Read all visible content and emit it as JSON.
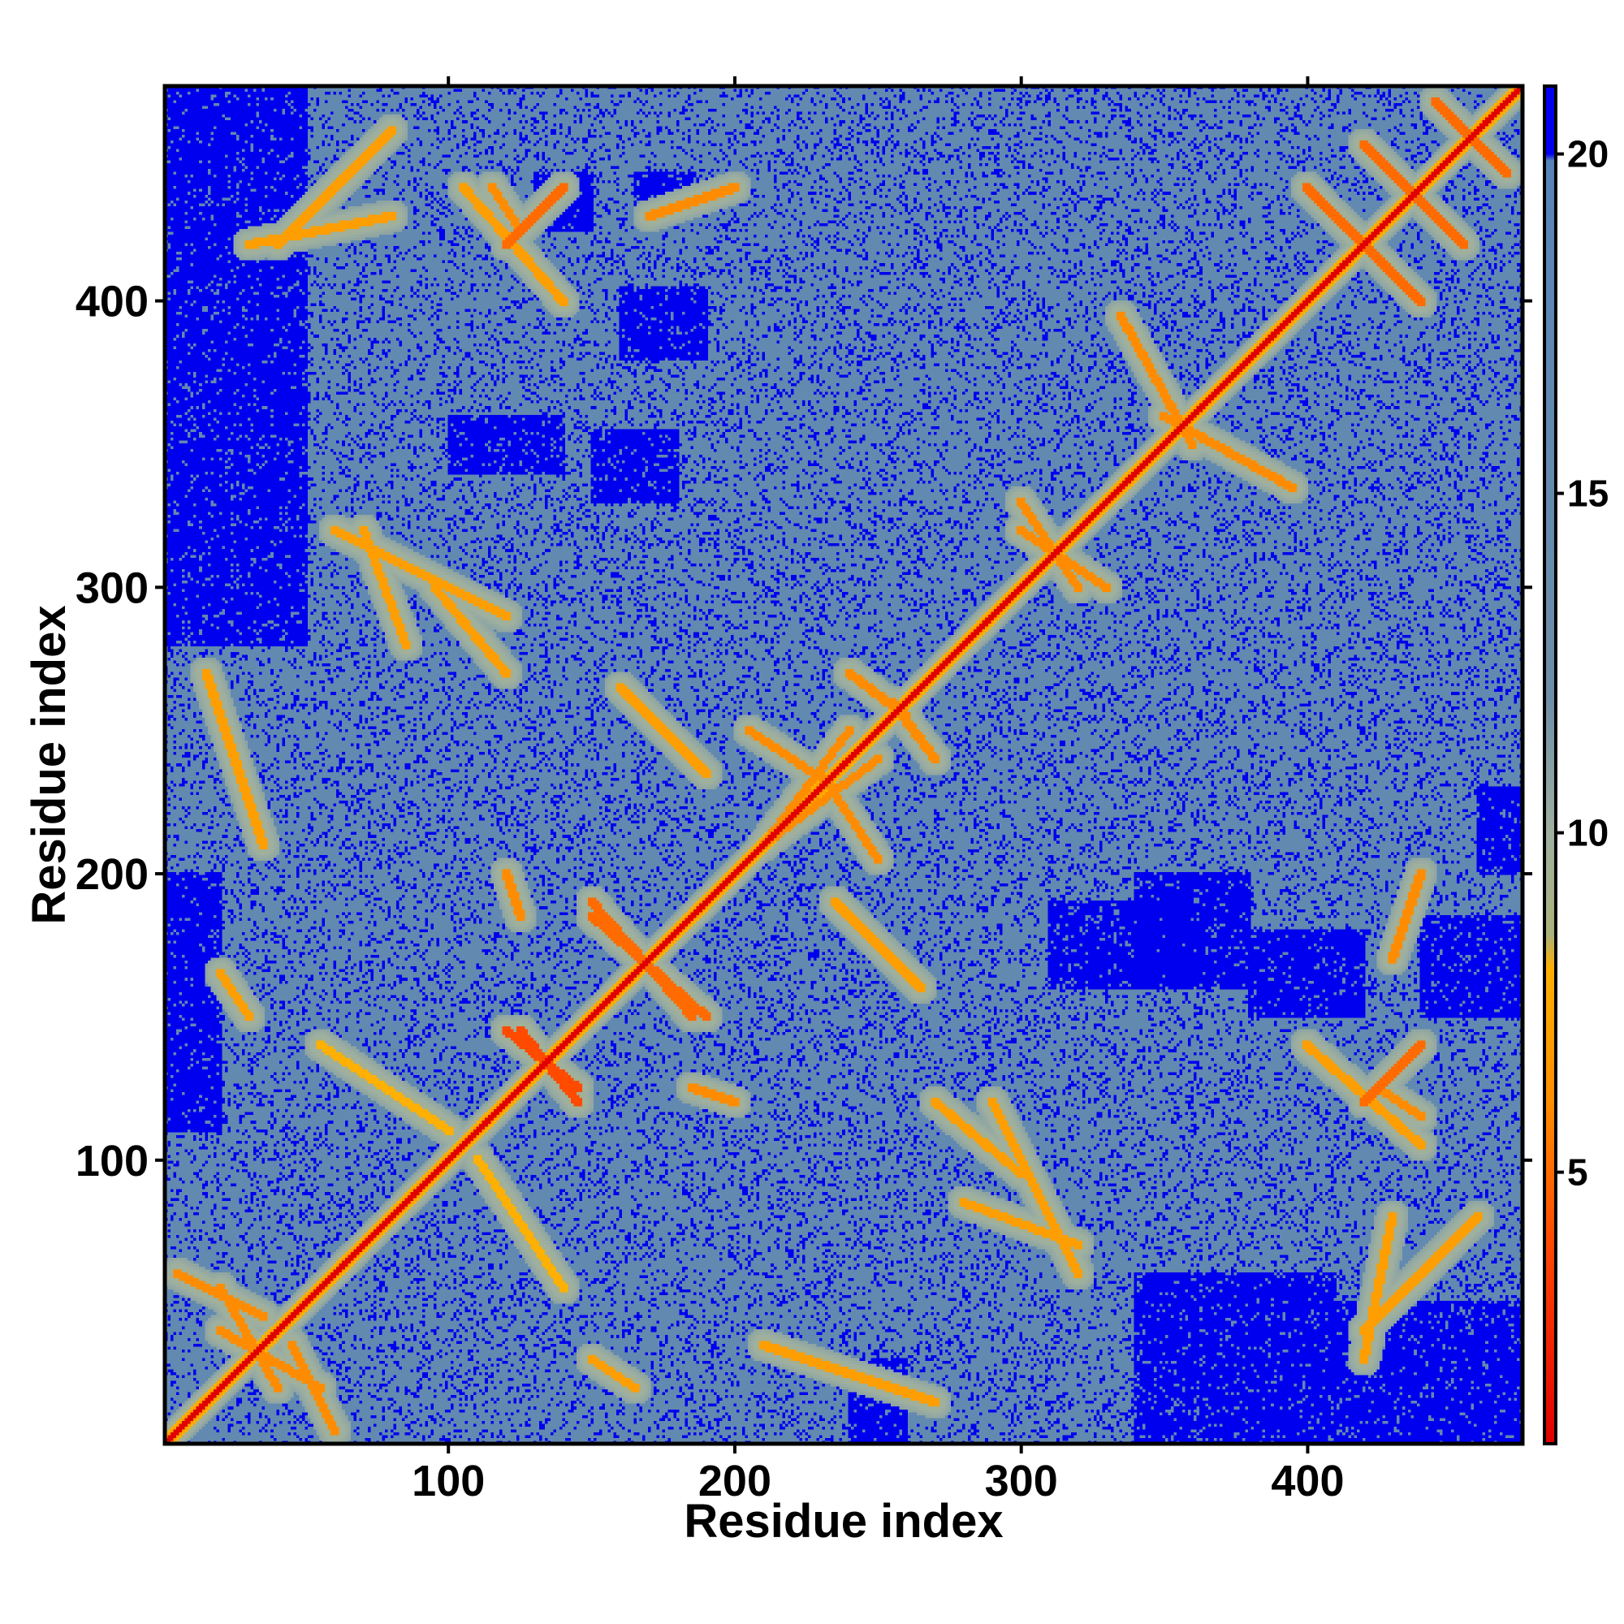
{
  "chart_data": {
    "type": "heatmap",
    "title": "",
    "xlabel": "Residue index",
    "ylabel": "Residue index",
    "xlim": [
      1,
      475
    ],
    "ylim": [
      1,
      475
    ],
    "x_ticks": [
      100,
      200,
      300,
      400
    ],
    "y_ticks": [
      100,
      200,
      300,
      400
    ],
    "x_tick_labels": [
      "100",
      "200",
      "300",
      "400"
    ],
    "y_tick_labels": [
      "100",
      "200",
      "300",
      "400"
    ],
    "grid": false,
    "legend": "none",
    "colorbar": {
      "placement": "right",
      "range": [
        1,
        21
      ],
      "ticks": [
        5,
        10,
        15,
        20
      ],
      "tick_labels": [
        "5",
        "10",
        "15",
        "20"
      ],
      "stops": [
        {
          "value": 1,
          "color": "#e00000"
        },
        {
          "value": 4,
          "color": "#ff4a00"
        },
        {
          "value": 6,
          "color": "#ff8c00"
        },
        {
          "value": 8,
          "color": "#ffb000"
        },
        {
          "value": 8.5,
          "color": "#aab27a"
        },
        {
          "value": 10,
          "color": "#9fb0a0"
        },
        {
          "value": 12,
          "color": "#6d8ea8"
        },
        {
          "value": 19.9,
          "color": "#5784b8"
        },
        {
          "value": 20,
          "color": "#0000ee"
        },
        {
          "value": 21,
          "color": "#0000ee"
        }
      ]
    },
    "features": {
      "diagonal_value": 1,
      "background_value": 16,
      "far_value": 21,
      "contact_lines": [
        {
          "from": [
            40,
            20
          ],
          "to": [
            20,
            55
          ],
          "value": 6
        },
        {
          "from": [
            45,
            35
          ],
          "to": [
            60,
            5
          ],
          "value": 6
        },
        {
          "from": [
            125,
            145
          ],
          "to": [
            145,
            120
          ],
          "value": 4
        },
        {
          "from": [
            150,
            190
          ],
          "to": [
            185,
            150
          ],
          "value": 5
        },
        {
          "from": [
            210,
            210
          ],
          "to": [
            240,
            250
          ],
          "value": 6
        },
        {
          "from": [
            235,
            190
          ],
          "to": [
            265,
            160
          ],
          "value": 7
        },
        {
          "from": [
            230,
            235
          ],
          "to": [
            250,
            205
          ],
          "value": 6
        },
        {
          "from": [
            255,
            260
          ],
          "to": [
            270,
            240
          ],
          "value": 6
        },
        {
          "from": [
            300,
            320
          ],
          "to": [
            330,
            300
          ],
          "value": 6
        },
        {
          "from": [
            350,
            360
          ],
          "to": [
            395,
            335
          ],
          "value": 6
        },
        {
          "from": [
            410,
            430
          ],
          "to": [
            440,
            400
          ],
          "value": 5
        },
        {
          "from": [
            425,
            450
          ],
          "to": [
            455,
            420
          ],
          "value": 5
        },
        {
          "from": [
            445,
            470
          ],
          "to": [
            470,
            445
          ],
          "value": 5
        },
        {
          "from": [
            115,
            440
          ],
          "to": [
            125,
            425
          ],
          "value": 6
        },
        {
          "from": [
            105,
            440
          ],
          "to": [
            140,
            400
          ],
          "value": 7
        },
        {
          "from": [
            40,
            420
          ],
          "to": [
            80,
            460
          ],
          "value": 7
        },
        {
          "from": [
            60,
            320
          ],
          "to": [
            120,
            290
          ],
          "value": 7
        },
        {
          "from": [
            55,
            140
          ],
          "to": [
            100,
            110
          ],
          "value": 8
        },
        {
          "from": [
            270,
            120
          ],
          "to": [
            300,
            95
          ],
          "value": 7
        },
        {
          "from": [
            280,
            85
          ],
          "to": [
            320,
            70
          ],
          "value": 7
        },
        {
          "from": [
            420,
            30
          ],
          "to": [
            430,
            80
          ],
          "value": 7
        },
        {
          "from": [
            430,
            170
          ],
          "to": [
            440,
            200
          ],
          "value": 6
        },
        {
          "from": [
            420,
            120
          ],
          "to": [
            440,
            140
          ],
          "value": 5
        },
        {
          "from": [
            20,
            165
          ],
          "to": [
            30,
            150
          ],
          "value": 7
        },
        {
          "from": [
            120,
            200
          ],
          "to": [
            125,
            185
          ],
          "value": 6
        },
        {
          "from": [
            15,
            270
          ],
          "to": [
            35,
            210
          ],
          "value": 7
        }
      ],
      "far_regions": [
        {
          "x": [
            1,
            50
          ],
          "y": [
            280,
            475
          ]
        },
        {
          "x": [
            340,
            410
          ],
          "y": [
            1,
            60
          ]
        },
        {
          "x": [
            410,
            475
          ],
          "y": [
            1,
            50
          ]
        },
        {
          "x": [
            1,
            20
          ],
          "y": [
            110,
            200
          ]
        },
        {
          "x": [
            310,
            360
          ],
          "y": [
            160,
            190
          ]
        },
        {
          "x": [
            340,
            380
          ],
          "y": [
            160,
            200
          ]
        },
        {
          "x": [
            380,
            420
          ],
          "y": [
            150,
            180
          ]
        },
        {
          "x": [
            440,
            475
          ],
          "y": [
            150,
            185
          ]
        },
        {
          "x": [
            160,
            190
          ],
          "y": [
            380,
            405
          ]
        },
        {
          "x": [
            150,
            180
          ],
          "y": [
            330,
            355
          ]
        },
        {
          "x": [
            130,
            150
          ],
          "y": [
            425,
            445
          ]
        },
        {
          "x": [
            165,
            185
          ],
          "y": [
            430,
            445
          ]
        },
        {
          "x": [
            240,
            260
          ],
          "y": [
            0,
            30
          ]
        },
        {
          "x": [
            100,
            140
          ],
          "y": [
            340,
            360
          ]
        },
        {
          "x": [
            460,
            475
          ],
          "y": [
            200,
            230
          ]
        }
      ]
    }
  }
}
